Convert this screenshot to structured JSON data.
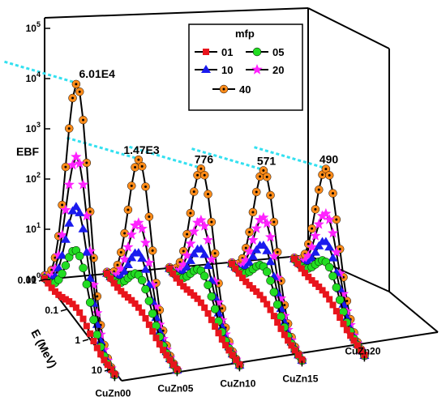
{
  "chart_data": {
    "type": "line",
    "projection": "3d",
    "log_scale": {
      "z": true,
      "y": true
    },
    "z_label": "EBF",
    "y_label": "E (MeV)",
    "z_ticks": [
      "10^0",
      "10^1",
      "10^2",
      "10^3",
      "10^4",
      "10^5"
    ],
    "y_ticks": [
      "0.01",
      "0.1",
      "1",
      "10"
    ],
    "z_range": [
      1,
      100000
    ],
    "y_range": [
      0.01,
      15
    ],
    "categories": [
      "CuZn00",
      "CuZn05",
      "CuZn10",
      "CuZn15",
      "CuZn20"
    ],
    "legend": {
      "title": "mfp",
      "placement": "top-right"
    },
    "series": [
      {
        "name": "01",
        "color": "#e8141c",
        "marker": "square",
        "peaks": [
          2.0,
          1.6,
          1.6,
          1.5,
          1.5
        ]
      },
      {
        "name": "05",
        "color": "#22dd22",
        "marker": "circle",
        "peaks": [
          28,
          7.2,
          7.0,
          6.8,
          6.7
        ]
      },
      {
        "name": "10",
        "color": "#1a1aee",
        "marker": "triangle",
        "peaks": [
          210,
          20,
          19,
          18,
          17
        ]
      },
      {
        "name": "20",
        "color": "#ff22ff",
        "marker": "star",
        "peaks": [
          2100,
          80,
          72,
          65,
          62
        ]
      },
      {
        "name": "40",
        "color": "#ff8c1a",
        "marker": "circle-dot",
        "peaks": [
          60100,
          1470,
          776,
          571,
          490
        ]
      }
    ],
    "annotations": [
      "6.01E4",
      "1.47E3",
      "776",
      "571",
      "490"
    ],
    "annotation_line_color": "#33e0f0"
  }
}
